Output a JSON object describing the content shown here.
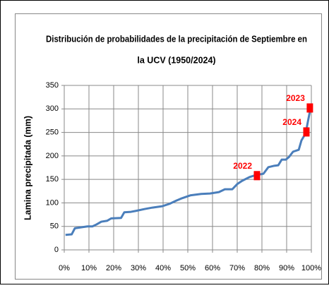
{
  "chart_data": {
    "type": "line",
    "title": [
      "Distribución de probabilidades de la precipitación de Septiembre en",
      "la UCV (1950/2024)"
    ],
    "ylabel": "Lamina precipitada (mm)",
    "series": [
      {
        "color": "#4a7ebb",
        "x": [
          0.5,
          3,
          4.3,
          6.9,
          9.4,
          11.4,
          13,
          15,
          17.4,
          19,
          23,
          24.3,
          27,
          29,
          32.6,
          35.7,
          39.7,
          42.6,
          45.4,
          47.7,
          51,
          55.4,
          59,
          62.6,
          65,
          68,
          70,
          72,
          75,
          77.4,
          80.6,
          82.6,
          85,
          86.6,
          88,
          89.7,
          91,
          92.6,
          94.9,
          96,
          97.7,
          98.6,
          99.7
        ],
        "values": [
          32,
          33,
          46,
          48,
          50,
          50,
          54,
          60,
          62,
          67,
          68,
          80,
          81,
          83,
          87,
          90,
          93,
          98,
          105,
          110,
          116,
          119,
          120,
          123,
          129,
          129,
          140,
          147,
          155,
          159,
          162,
          176,
          179,
          180,
          192,
          192,
          198,
          209,
          213,
          233,
          248,
          273,
          302
        ]
      }
    ],
    "annotations": [
      {
        "label": "2022",
        "x": 78,
        "y": 158
      },
      {
        "label": "2023",
        "x": 99.4,
        "y": 302
      },
      {
        "label": "2024",
        "x": 98,
        "y": 251
      }
    ],
    "marker_color": "#ff0000",
    "xlim": [
      0,
      100
    ],
    "xticks": [
      {
        "value": 0,
        "label": "0%"
      },
      {
        "value": 10,
        "label": "10%"
      },
      {
        "value": 20,
        "label": "20%"
      },
      {
        "value": 30,
        "label": "30%"
      },
      {
        "value": 40,
        "label": "40%"
      },
      {
        "value": 50,
        "label": "50%"
      },
      {
        "value": 60,
        "label": "60%"
      },
      {
        "value": 70,
        "label": "70%"
      },
      {
        "value": 80,
        "label": "80%"
      },
      {
        "value": 90,
        "label": "90%"
      },
      {
        "value": 100,
        "label": "100%"
      }
    ],
    "ylim": [
      0,
      350
    ],
    "yticks": [
      0,
      50,
      100,
      150,
      200,
      250,
      300,
      350
    ],
    "grid": true
  }
}
